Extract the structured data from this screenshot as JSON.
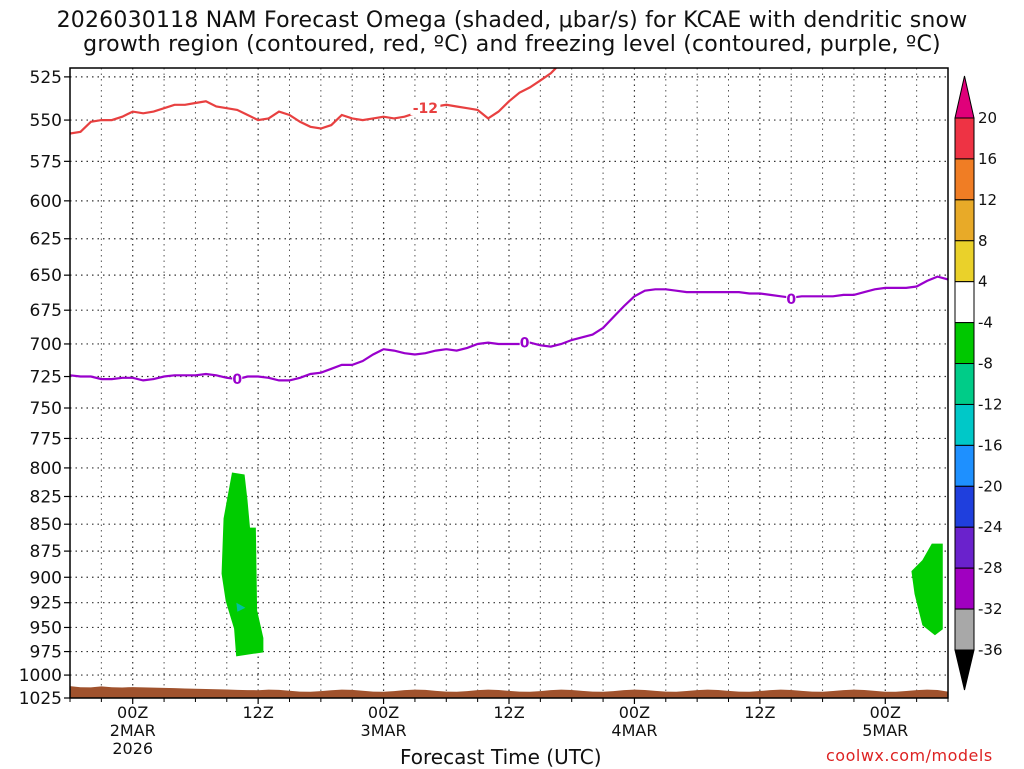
{
  "chart_data": {
    "type": "time-height cross section",
    "title_line1": "2026030118 NAM Forecast Omega (shaded, μbar/s) for KCAE with dendritic snow",
    "title_line2": "growth region (contoured, red, ºC) and freezing level (contoured, purple, ºC)",
    "xlabel": "Forecast Time (UTC)",
    "credit": "coolwx.com/models",
    "y_axis": {
      "scale": "log-pressure",
      "inverted": true,
      "ylim": [
        1025,
        520
      ],
      "ticks": [
        525,
        550,
        575,
        600,
        625,
        650,
        675,
        700,
        725,
        750,
        775,
        800,
        825,
        850,
        875,
        900,
        925,
        950,
        975,
        1000,
        1025
      ]
    },
    "x_axis": {
      "range_hours": [
        0,
        84
      ],
      "ticks": [
        {
          "hour": 6,
          "label": "00Z",
          "sub": "2MAR",
          "sub2": "2026"
        },
        {
          "hour": 18,
          "label": "12Z",
          "sub": "",
          "sub2": ""
        },
        {
          "hour": 30,
          "label": "00Z",
          "sub": "3MAR",
          "sub2": ""
        },
        {
          "hour": 42,
          "label": "12Z",
          "sub": "",
          "sub2": ""
        },
        {
          "hour": 54,
          "label": "00Z",
          "sub": "4MAR",
          "sub2": ""
        },
        {
          "hour": 66,
          "label": "12Z",
          "sub": "",
          "sub2": ""
        },
        {
          "hour": 78,
          "label": "00Z",
          "sub": "5MAR",
          "sub2": ""
        }
      ]
    },
    "grid": true,
    "contours": [
      {
        "name": "-12",
        "label": "-12",
        "color": "#e84040",
        "label_at": {
          "hour": 34,
          "p": 543
        },
        "points": [
          [
            0,
            558
          ],
          [
            1,
            557
          ],
          [
            2,
            551
          ],
          [
            3,
            550
          ],
          [
            4,
            550
          ],
          [
            5,
            548
          ],
          [
            6,
            545
          ],
          [
            7,
            546
          ],
          [
            8,
            545
          ],
          [
            9,
            543
          ],
          [
            10,
            541
          ],
          [
            11,
            541
          ],
          [
            12,
            540
          ],
          [
            13,
            539
          ],
          [
            14,
            542
          ],
          [
            15,
            543
          ],
          [
            16,
            544
          ],
          [
            17,
            547
          ],
          [
            18,
            550
          ],
          [
            19,
            549
          ],
          [
            20,
            545
          ],
          [
            21,
            547
          ],
          [
            22,
            551
          ],
          [
            23,
            554
          ],
          [
            24,
            555
          ],
          [
            25,
            553
          ],
          [
            26,
            547
          ],
          [
            27,
            549
          ],
          [
            28,
            550
          ],
          [
            29,
            549
          ],
          [
            30,
            548
          ],
          [
            31,
            549
          ],
          [
            32,
            548
          ],
          [
            33,
            546
          ],
          [
            34,
            543
          ],
          [
            35,
            542
          ],
          [
            36,
            541
          ],
          [
            37,
            542
          ],
          [
            38,
            543
          ],
          [
            39,
            544
          ],
          [
            40,
            549
          ],
          [
            41,
            545
          ],
          [
            42,
            539
          ],
          [
            43,
            534
          ],
          [
            44,
            531
          ],
          [
            45,
            527
          ],
          [
            46,
            523
          ],
          [
            46.5,
            520
          ]
        ]
      },
      {
        "name": "0",
        "label": "0",
        "color": "#9900cc",
        "labels_at": [
          {
            "hour": 16,
            "p": 727
          },
          {
            "hour": 43.5,
            "p": 699
          },
          {
            "hour": 69,
            "p": 667
          }
        ],
        "points": [
          [
            0,
            724
          ],
          [
            1,
            725
          ],
          [
            2,
            725
          ],
          [
            3,
            727
          ],
          [
            4,
            727
          ],
          [
            5,
            726
          ],
          [
            6,
            726
          ],
          [
            7,
            728
          ],
          [
            8,
            727
          ],
          [
            9,
            725
          ],
          [
            10,
            724
          ],
          [
            11,
            724
          ],
          [
            12,
            724
          ],
          [
            13,
            723
          ],
          [
            14,
            724
          ],
          [
            15,
            726
          ],
          [
            16,
            727
          ],
          [
            17,
            725
          ],
          [
            18,
            725
          ],
          [
            19,
            726
          ],
          [
            20,
            728
          ],
          [
            21,
            728
          ],
          [
            22,
            726
          ],
          [
            23,
            723
          ],
          [
            24,
            722
          ],
          [
            25,
            719
          ],
          [
            26,
            716
          ],
          [
            27,
            716
          ],
          [
            28,
            713
          ],
          [
            29,
            708
          ],
          [
            30,
            704
          ],
          [
            31,
            705
          ],
          [
            32,
            707
          ],
          [
            33,
            708
          ],
          [
            34,
            707
          ],
          [
            35,
            705
          ],
          [
            36,
            704
          ],
          [
            37,
            705
          ],
          [
            38,
            703
          ],
          [
            39,
            700
          ],
          [
            40,
            699
          ],
          [
            41,
            700
          ],
          [
            42,
            700
          ],
          [
            43,
            700
          ],
          [
            44,
            699
          ],
          [
            45,
            701
          ],
          [
            46,
            702
          ],
          [
            47,
            700
          ],
          [
            48,
            697
          ],
          [
            49,
            695
          ],
          [
            50,
            693
          ],
          [
            51,
            688
          ],
          [
            52,
            680
          ],
          [
            53,
            672
          ],
          [
            54,
            665
          ],
          [
            55,
            661
          ],
          [
            56,
            660
          ],
          [
            57,
            660
          ],
          [
            58,
            661
          ],
          [
            59,
            662
          ],
          [
            60,
            662
          ],
          [
            61,
            662
          ],
          [
            62,
            662
          ],
          [
            63,
            662
          ],
          [
            64,
            662
          ],
          [
            65,
            663
          ],
          [
            66,
            663
          ],
          [
            67,
            664
          ],
          [
            68,
            665
          ],
          [
            69,
            666
          ],
          [
            70,
            665
          ],
          [
            71,
            665
          ],
          [
            72,
            665
          ],
          [
            73,
            665
          ],
          [
            74,
            664
          ],
          [
            75,
            664
          ],
          [
            76,
            662
          ],
          [
            77,
            660
          ],
          [
            78,
            659
          ],
          [
            79,
            659
          ],
          [
            80,
            659
          ],
          [
            81,
            658
          ],
          [
            82,
            654
          ],
          [
            83,
            651
          ],
          [
            84,
            653
          ]
        ]
      }
    ],
    "shaded_regions": [
      {
        "category": "-4 to -8",
        "color": "#00cc00",
        "hour_min": 14.5,
        "hour_max": 18.5,
        "p_top": 804,
        "p_bottom": 980
      },
      {
        "category": "-4 to -8",
        "color": "#00cc00",
        "hour_min": 80.5,
        "hour_max": 83.5,
        "p_top": 868,
        "p_bottom": 958
      }
    ],
    "terrain_fill_color": "#a0522d",
    "colorbar": {
      "labels": [
        "20",
        "16",
        "12",
        "8",
        "4",
        "-4",
        "-8",
        "-12",
        "-16",
        "-20",
        "-24",
        "-28",
        "-32",
        "-36"
      ],
      "segments": [
        {
          "range": "16 to 20",
          "color": "#ee3344"
        },
        {
          "range": "12 to 16",
          "color": "#f07d24"
        },
        {
          "range": "8 to 12",
          "color": "#e8aa28"
        },
        {
          "range": "4 to 8",
          "color": "#ead12a"
        },
        {
          "range": "-4 to 4",
          "color": "#ffffff"
        },
        {
          "range": "-8 to -4",
          "color": "#00c800"
        },
        {
          "range": "-12 to -8",
          "color": "#00cc88"
        },
        {
          "range": "-16 to -12",
          "color": "#00c8c8"
        },
        {
          "range": "-20 to -16",
          "color": "#1e90ff"
        },
        {
          "range": "-24 to -20",
          "color": "#1f3fdd"
        },
        {
          "range": "-28 to -24",
          "color": "#6a22cc"
        },
        {
          "range": "-32 to -28",
          "color": "#a000c0"
        },
        {
          "range": "-36 to -32",
          "color": "#a8a8a8"
        }
      ],
      "top_arrow_color": "#e0007a",
      "bottom_arrow_color": "#000000"
    }
  }
}
